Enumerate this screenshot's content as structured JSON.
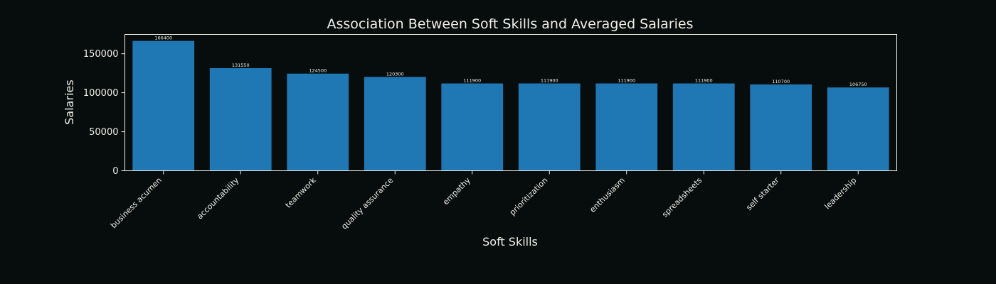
{
  "chart_data": {
    "type": "bar",
    "title": "Association Between Soft Skills and Averaged Salaries",
    "xlabel": "Soft Skills",
    "ylabel": "Salaries",
    "categories": [
      "business acumen",
      "accountability",
      "teamwork",
      "quality assurance",
      "empathy",
      "prioritization",
      "enthusiasm",
      "spreadsheets",
      "self starter",
      "leadership"
    ],
    "values": [
      166400,
      131550,
      124500,
      120300,
      111900,
      111900,
      111900,
      111900,
      110700,
      106750
    ],
    "data_labels": [
      "166400",
      "131550",
      "124500",
      "120300",
      "111900",
      "111900",
      "111900",
      "111900",
      "110700",
      "106750"
    ],
    "yticks": [
      0,
      50000,
      100000,
      150000
    ],
    "ytick_labels": [
      "0",
      "50000",
      "100000",
      "150000"
    ],
    "ylim": [
      0,
      174720
    ],
    "grid": false,
    "legend": "none",
    "colors": {
      "bar": "#1f77b4",
      "background": "#070c0d",
      "text": "#f0f0e6"
    }
  }
}
